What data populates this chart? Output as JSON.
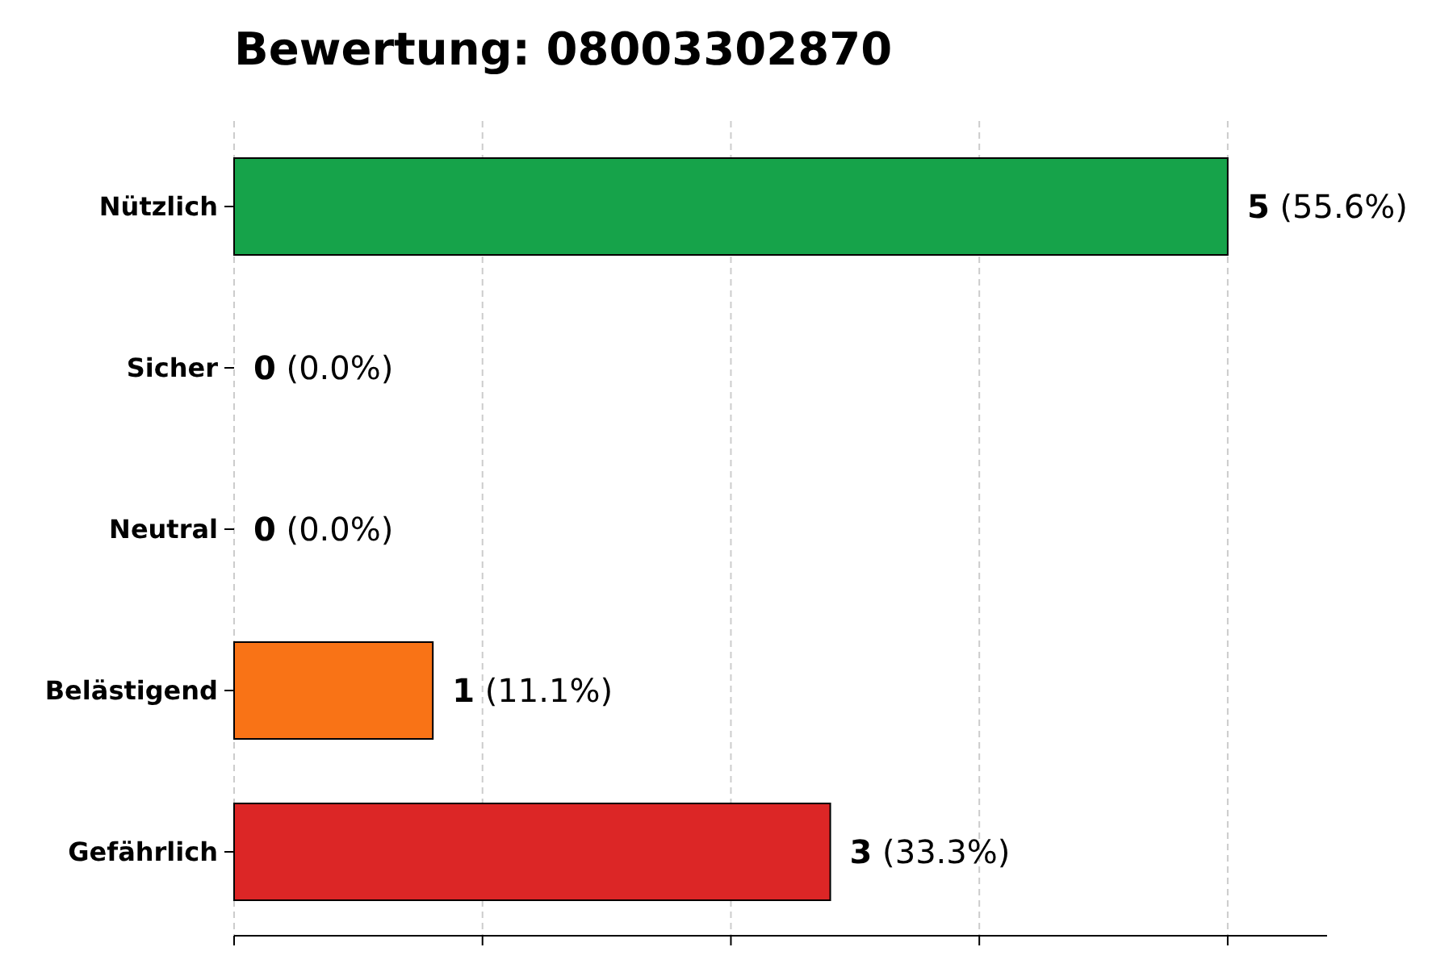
{
  "chart_data": {
    "type": "bar",
    "orientation": "horizontal",
    "title": "Bewertung: 08003302870",
    "categories": [
      "Nützlich",
      "Sicher",
      "Neutral",
      "Belästigend",
      "Gefährlich"
    ],
    "values": [
      5,
      0,
      0,
      1,
      3
    ],
    "colors": [
      "#16a34a",
      "#22c55e",
      "#9ca3af",
      "#f97316",
      "#dc2626"
    ],
    "value_labels": [
      "5 (55.6%)",
      "0 (0.0%)",
      "0 (0.0%)",
      "1 (11.1%)",
      "3 (33.3%)"
    ],
    "xlim": [
      0,
      5.5
    ],
    "xticks": [
      {
        "value": 0,
        "label": null
      },
      {
        "value": 1.25,
        "label": null
      },
      {
        "value": 2.5,
        "label": null
      },
      {
        "value": 3.75,
        "label": null
      },
      {
        "value": 5,
        "label": null
      }
    ],
    "grid": "x",
    "tick_labels": "y"
  }
}
